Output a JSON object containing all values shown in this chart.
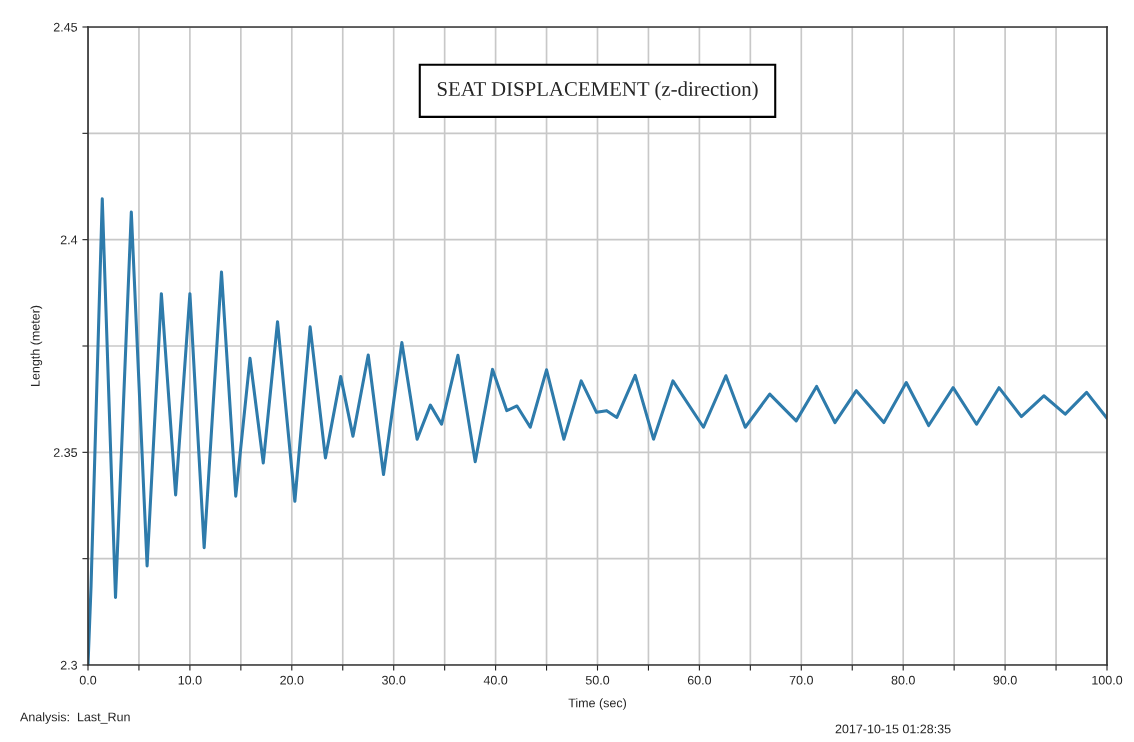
{
  "chart_data": {
    "type": "line",
    "title": "SEAT DISPLACEMENT (z-direction)",
    "xlabel": "Time (sec)",
    "ylabel": "Length (meter)",
    "annotations": [
      "Analysis:  Last_Run",
      "2017-10-15 01:28:35"
    ],
    "x": [
      0,
      0.3,
      1.4,
      2.7,
      4.25,
      5.8,
      7.2,
      8.6,
      10.0,
      11.4,
      13.1,
      14.5,
      15.9,
      17.2,
      18.6,
      20.3,
      21.8,
      23.3,
      24.8,
      26.0,
      27.5,
      29.0,
      30.8,
      32.3,
      33.6,
      34.7,
      36.3,
      38.0,
      39.7,
      41.1,
      42.1,
      43.4,
      45.0,
      46.7,
      48.4,
      49.9,
      50.9,
      51.9,
      53.7,
      55.5,
      57.4,
      60.4,
      62.6,
      64.5,
      66.9,
      69.5,
      71.5,
      73.3,
      75.4,
      78.1,
      80.3,
      82.5,
      84.9,
      87.2,
      89.4,
      91.6,
      93.8,
      95.9,
      98.0,
      100.0
    ],
    "series": [
      {
        "color": "#2e7bab",
        "values": [
          2.3,
          2.3186,
          2.4096,
          2.3159,
          2.4065,
          2.3233,
          2.3873,
          2.34,
          2.3873,
          2.3276,
          2.3924,
          2.3397,
          2.3721,
          2.3475,
          2.3807,
          2.3385,
          2.3795,
          2.3487,
          2.3678,
          2.3538,
          2.3729,
          2.3448,
          2.3758,
          2.3531,
          2.3611,
          2.3566,
          2.3728,
          2.3478,
          2.3695,
          2.3598,
          2.3609,
          2.3559,
          2.3694,
          2.3531,
          2.3668,
          2.3594,
          2.3598,
          2.3582,
          2.3681,
          2.3531,
          2.3668,
          2.3559,
          2.368,
          2.3559,
          2.3637,
          2.3574,
          2.3655,
          2.357,
          2.3645,
          2.357,
          2.3664,
          2.3563,
          2.3652,
          2.3566,
          2.3652,
          2.3584,
          2.3633,
          2.359,
          2.3641,
          2.358
        ]
      }
    ],
    "xlim": [
      0,
      100
    ],
    "ylim": [
      2.3,
      2.45
    ],
    "xticks": [
      {
        "value": 0,
        "label": "0.0"
      },
      {
        "value": 5,
        "label": null
      },
      {
        "value": 10,
        "label": "10.0"
      },
      {
        "value": 15,
        "label": null
      },
      {
        "value": 20,
        "label": "20.0"
      },
      {
        "value": 25,
        "label": null
      },
      {
        "value": 30,
        "label": "30.0"
      },
      {
        "value": 35,
        "label": null
      },
      {
        "value": 40,
        "label": "40.0"
      },
      {
        "value": 45,
        "label": null
      },
      {
        "value": 50,
        "label": "50.0"
      },
      {
        "value": 55,
        "label": null
      },
      {
        "value": 60,
        "label": "60.0"
      },
      {
        "value": 65,
        "label": null
      },
      {
        "value": 70,
        "label": "70.0"
      },
      {
        "value": 75,
        "label": null
      },
      {
        "value": 80,
        "label": "80.0"
      },
      {
        "value": 85,
        "label": null
      },
      {
        "value": 90,
        "label": "90.0"
      },
      {
        "value": 95,
        "label": null
      },
      {
        "value": 100,
        "label": "100.0"
      }
    ],
    "yticks": [
      2.3,
      {
        "value": 2.325,
        "label": null
      },
      2.35,
      {
        "value": 2.375,
        "label": null
      },
      2.4,
      {
        "value": 2.425,
        "label": null
      },
      2.45
    ],
    "grid": true,
    "marker": "none",
    "line_style": "solid"
  }
}
